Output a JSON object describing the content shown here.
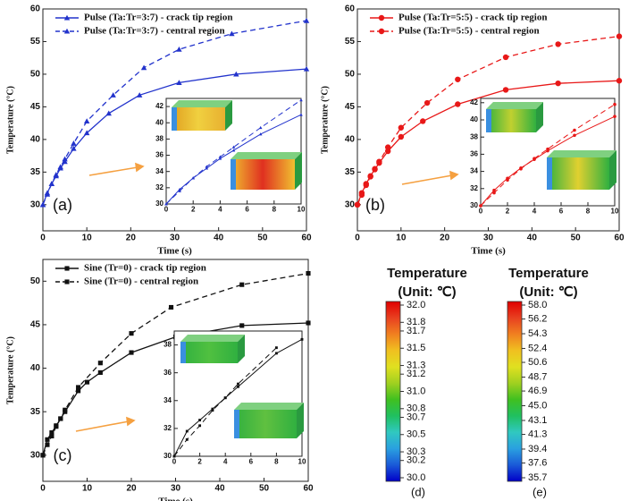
{
  "chart_data": [
    {
      "type": "line",
      "panel_label": "(a)",
      "xlabel": "Time (s)",
      "ylabel": "Temperature (°C)",
      "xlim": [
        0,
        60
      ],
      "ylim": [
        26,
        60
      ],
      "xticks": [
        0,
        10,
        20,
        30,
        40,
        50,
        60
      ],
      "yticks": [
        30,
        35,
        40,
        45,
        50,
        55,
        60
      ],
      "marker": "triangle",
      "series": [
        {
          "name": "Pulse (Ta:Tr=3:7) - crack tip region",
          "color": "#2233cc",
          "line_style": "solid",
          "x": [
            0,
            1,
            2,
            3,
            4,
            5,
            7,
            10,
            15,
            22,
            31,
            44,
            60
          ],
          "values": [
            30,
            31.8,
            33.2,
            34.4,
            35.6,
            36.6,
            38.6,
            41.0,
            44.0,
            46.8,
            48.7,
            50.0,
            50.8
          ]
        },
        {
          "name": "Pulse (Ta:Tr=3:7) - central region",
          "color": "#2233cc",
          "line_style": "dashed",
          "x": [
            0,
            1,
            2,
            3,
            4,
            5,
            7,
            10,
            16,
            23,
            31,
            43,
            60
          ],
          "values": [
            30,
            31.6,
            33.2,
            34.6,
            35.8,
            37.0,
            39.4,
            42.8,
            46.8,
            51.0,
            53.8,
            56.2,
            58.2
          ]
        }
      ],
      "inset": {
        "xlim": [
          0,
          10
        ],
        "ylim": [
          30,
          43
        ],
        "xticks": [
          0,
          2,
          4,
          6,
          8,
          10
        ],
        "yticks": [
          30,
          32,
          34,
          36,
          38,
          40,
          42
        ]
      }
    },
    {
      "type": "line",
      "panel_label": "(b)",
      "xlabel": "Time (s)",
      "ylabel": "Temperature (°C)",
      "xlim": [
        0,
        60
      ],
      "ylim": [
        26,
        60
      ],
      "xticks": [
        0,
        10,
        20,
        30,
        40,
        50,
        60
      ],
      "yticks": [
        30,
        35,
        40,
        45,
        50,
        55,
        60
      ],
      "marker": "circle",
      "series": [
        {
          "name": "Pulse (Ta:Tr=5:5) - crack tip region",
          "color": "#e81818",
          "line_style": "solid",
          "x": [
            0,
            1,
            2,
            3,
            4,
            5,
            7,
            10,
            15,
            23,
            34,
            46,
            60
          ],
          "values": [
            30,
            31.8,
            33.2,
            34.4,
            35.4,
            36.4,
            38.2,
            40.4,
            42.8,
            45.4,
            47.6,
            48.6,
            49.0
          ]
        },
        {
          "name": "Pulse (Ta:Tr=5:5) - central region",
          "color": "#e81818",
          "line_style": "dashed",
          "x": [
            0,
            1,
            2,
            3,
            4,
            5,
            7,
            10,
            16,
            23,
            34,
            46,
            60
          ],
          "values": [
            30,
            31.5,
            33.0,
            34.3,
            35.5,
            36.6,
            38.8,
            41.8,
            45.6,
            49.2,
            52.6,
            54.6,
            55.8
          ]
        }
      ],
      "inset": {
        "xlim": [
          0,
          10
        ],
        "ylim": [
          30,
          42.5
        ],
        "xticks": [
          0,
          2,
          4,
          6,
          8,
          10
        ],
        "yticks": [
          30,
          32,
          34,
          36,
          38,
          40,
          42
        ]
      }
    },
    {
      "type": "line",
      "panel_label": "(c)",
      "xlabel": "Time (s)",
      "ylabel": "Temperature (°C)",
      "xlim": [
        0,
        60
      ],
      "ylim": [
        27,
        52.5
      ],
      "xticks": [
        0,
        10,
        20,
        30,
        40,
        50,
        60
      ],
      "yticks": [
        30,
        35,
        40,
        45,
        50
      ],
      "marker": "square",
      "series": [
        {
          "name": "Sine (Tr=0) - crack tip region",
          "color": "#111111",
          "line_style": "solid",
          "x": [
            0,
            1,
            2,
            3,
            4,
            5,
            8,
            10,
            13,
            20,
            30,
            45,
            60
          ],
          "values": [
            30,
            31.8,
            32.6,
            33.4,
            34.2,
            35.0,
            37.4,
            38.4,
            39.5,
            41.8,
            43.6,
            44.9,
            45.2
          ]
        },
        {
          "name": "Sine (Tr=0) - central region",
          "color": "#111111",
          "line_style": "dashed",
          "x": [
            0,
            1,
            2,
            3,
            4,
            5,
            8,
            13,
            20,
            29,
            45,
            60
          ],
          "values": [
            30,
            31.2,
            32.2,
            33.3,
            34.2,
            35.2,
            37.8,
            40.6,
            44.0,
            47.0,
            49.6,
            50.9
          ]
        }
      ],
      "inset": {
        "xlim": [
          0,
          10
        ],
        "ylim": [
          30,
          39
        ],
        "xticks": [
          0,
          2,
          4,
          6,
          8,
          10
        ],
        "yticks": [
          30,
          32,
          34,
          36,
          38
        ]
      }
    },
    {
      "type": "colorbar",
      "title": "Temperature",
      "subtitle": "(Unit: ℃)",
      "panel_label": "(d)",
      "ylim": [
        30,
        32
      ],
      "yticks": [
        {
          "value": 32,
          "label": "32.0"
        },
        31.8,
        31.7,
        31.5,
        31.3,
        31.2,
        {
          "value": 31,
          "label": "31.0"
        },
        30.8,
        30.7,
        30.5,
        30.3,
        30.2,
        {
          "value": 30,
          "label": "30.0"
        }
      ],
      "colors": [
        "#0000c8",
        "#1a5ad8",
        "#2aa0e0",
        "#30c8c0",
        "#20c060",
        "#40c020",
        "#a0d020",
        "#e0e020",
        "#f0c020",
        "#f08020",
        "#e84020",
        "#e00000"
      ]
    },
    {
      "type": "colorbar",
      "title": "Temperature",
      "subtitle": "(Unit: ℃)",
      "panel_label": "(e)",
      "ylim": [
        35.7,
        58
      ],
      "yticks": [
        {
          "value": 58,
          "label": "58.0"
        },
        56.2,
        54.3,
        52.4,
        50.6,
        48.7,
        46.9,
        {
          "value": 45,
          "label": "45.0"
        },
        43.1,
        41.3,
        39.4,
        37.6,
        35.7
      ],
      "colors": [
        "#0000c8",
        "#1a5ad8",
        "#2aa0e0",
        "#30c8c0",
        "#20c060",
        "#40c020",
        "#a0d020",
        "#e0e020",
        "#f0c020",
        "#f08020",
        "#e84020",
        "#e00000"
      ]
    }
  ]
}
